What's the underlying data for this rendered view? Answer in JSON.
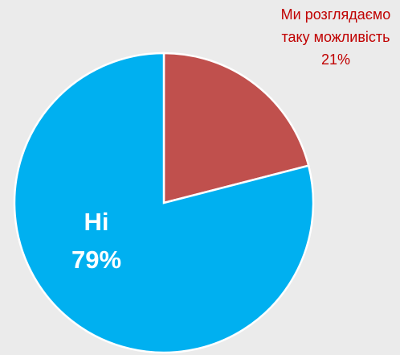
{
  "chart_data": {
    "type": "pie",
    "categories": [
      "Ми розглядаємо таку можливість",
      "Ні"
    ],
    "values": [
      21,
      79
    ],
    "value_labels": [
      "21%",
      "79%"
    ],
    "colors": [
      "#c0504d",
      "#00b0f0"
    ]
  }
}
